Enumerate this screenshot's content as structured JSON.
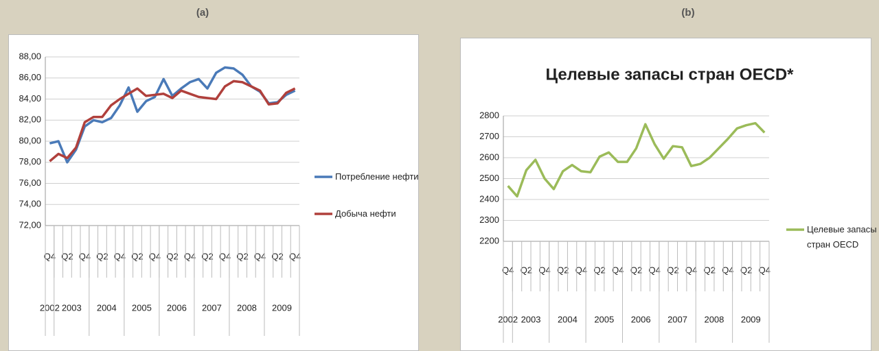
{
  "chart_data": [
    {
      "type": "line",
      "panel_label": "(a)",
      "categories": [
        {
          "year": "2002",
          "quarter": "Q4"
        },
        {
          "year": "2003",
          "quarter": null
        },
        {
          "year": "2003",
          "quarter": "Q2"
        },
        {
          "year": "2003",
          "quarter": null
        },
        {
          "year": "2003",
          "quarter": "Q4"
        },
        {
          "year": "2004",
          "quarter": null
        },
        {
          "year": "2004",
          "quarter": "Q2"
        },
        {
          "year": "2004",
          "quarter": null
        },
        {
          "year": "2004",
          "quarter": "Q4"
        },
        {
          "year": "2005",
          "quarter": null
        },
        {
          "year": "2005",
          "quarter": "Q2"
        },
        {
          "year": "2005",
          "quarter": null
        },
        {
          "year": "2005",
          "quarter": "Q4"
        },
        {
          "year": "2006",
          "quarter": null
        },
        {
          "year": "2006",
          "quarter": "Q2"
        },
        {
          "year": "2006",
          "quarter": null
        },
        {
          "year": "2006",
          "quarter": "Q4"
        },
        {
          "year": "2007",
          "quarter": null
        },
        {
          "year": "2007",
          "quarter": "Q2"
        },
        {
          "year": "2007",
          "quarter": null
        },
        {
          "year": "2007",
          "quarter": "Q4"
        },
        {
          "year": "2008",
          "quarter": null
        },
        {
          "year": "2008",
          "quarter": "Q2"
        },
        {
          "year": "2008",
          "quarter": null
        },
        {
          "year": "2008",
          "quarter": "Q4"
        },
        {
          "year": "2009",
          "quarter": null
        },
        {
          "year": "2009",
          "quarter": "Q2"
        },
        {
          "year": "2009",
          "quarter": null
        },
        {
          "year": "2009",
          "quarter": "Q4"
        }
      ],
      "ylim": [
        72,
        88
      ],
      "yticks": [
        {
          "value": 72,
          "label": "72,00"
        },
        {
          "value": 74,
          "label": "74,00"
        },
        {
          "value": 76,
          "label": "76,00"
        },
        {
          "value": 78,
          "label": "78,00"
        },
        {
          "value": 80,
          "label": "80,00"
        },
        {
          "value": 82,
          "label": "82,00"
        },
        {
          "value": 84,
          "label": "84,00"
        },
        {
          "value": 86,
          "label": "86,00"
        },
        {
          "value": 88,
          "label": "88,00"
        }
      ],
      "grid": true,
      "legend": "right",
      "series": [
        {
          "name": "Потребление нефти",
          "color": "#4a7ab8",
          "values": [
            79.8,
            80.0,
            78.0,
            79.2,
            81.4,
            82.0,
            81.8,
            82.2,
            83.4,
            85.1,
            82.8,
            83.8,
            84.2,
            85.9,
            84.3,
            85.0,
            85.6,
            85.9,
            85.0,
            86.5,
            87.0,
            86.9,
            86.3,
            85.2,
            84.7,
            83.6,
            83.7,
            84.4,
            84.8
          ]
        },
        {
          "name": "Добыча нефти",
          "color": "#b0403c",
          "values": [
            78.1,
            78.8,
            78.4,
            79.4,
            81.8,
            82.3,
            82.3,
            83.4,
            84.0,
            84.5,
            85.0,
            84.3,
            84.4,
            84.5,
            84.1,
            84.8,
            84.5,
            84.2,
            84.1,
            84.0,
            85.2,
            85.7,
            85.6,
            85.2,
            84.8,
            83.5,
            83.6,
            84.6,
            85.0
          ]
        }
      ]
    },
    {
      "type": "line",
      "panel_label": "(b)",
      "title": "Целевые запасы стран OECD*",
      "categories": [
        {
          "year": "2002",
          "quarter": "Q4"
        },
        {
          "year": "2003",
          "quarter": null
        },
        {
          "year": "2003",
          "quarter": "Q2"
        },
        {
          "year": "2003",
          "quarter": null
        },
        {
          "year": "2003",
          "quarter": "Q4"
        },
        {
          "year": "2004",
          "quarter": null
        },
        {
          "year": "2004",
          "quarter": "Q2"
        },
        {
          "year": "2004",
          "quarter": null
        },
        {
          "year": "2004",
          "quarter": "Q4"
        },
        {
          "year": "2005",
          "quarter": null
        },
        {
          "year": "2005",
          "quarter": "Q2"
        },
        {
          "year": "2005",
          "quarter": null
        },
        {
          "year": "2005",
          "quarter": "Q4"
        },
        {
          "year": "2006",
          "quarter": null
        },
        {
          "year": "2006",
          "quarter": "Q2"
        },
        {
          "year": "2006",
          "quarter": null
        },
        {
          "year": "2006",
          "quarter": "Q4"
        },
        {
          "year": "2007",
          "quarter": null
        },
        {
          "year": "2007",
          "quarter": "Q2"
        },
        {
          "year": "2007",
          "quarter": null
        },
        {
          "year": "2007",
          "quarter": "Q4"
        },
        {
          "year": "2008",
          "quarter": null
        },
        {
          "year": "2008",
          "quarter": "Q2"
        },
        {
          "year": "2008",
          "quarter": null
        },
        {
          "year": "2008",
          "quarter": "Q4"
        },
        {
          "year": "2009",
          "quarter": null
        },
        {
          "year": "2009",
          "quarter": "Q2"
        },
        {
          "year": "2009",
          "quarter": null
        },
        {
          "year": "2009",
          "quarter": "Q4"
        }
      ],
      "ylim": [
        2200,
        2800
      ],
      "yticks": [
        2200,
        2300,
        2400,
        2500,
        2600,
        2700,
        2800
      ],
      "grid": true,
      "legend": "right",
      "series": [
        {
          "name": "Целевые запасы стран OECD",
          "color": "#9bbb59",
          "values": [
            2465,
            2415,
            2540,
            2590,
            2500,
            2450,
            2535,
            2565,
            2535,
            2530,
            2605,
            2625,
            2580,
            2580,
            2645,
            2760,
            2665,
            2595,
            2655,
            2650,
            2560,
            2570,
            2600,
            2645,
            2690,
            2740,
            2755,
            2765,
            2720
          ]
        }
      ]
    }
  ]
}
